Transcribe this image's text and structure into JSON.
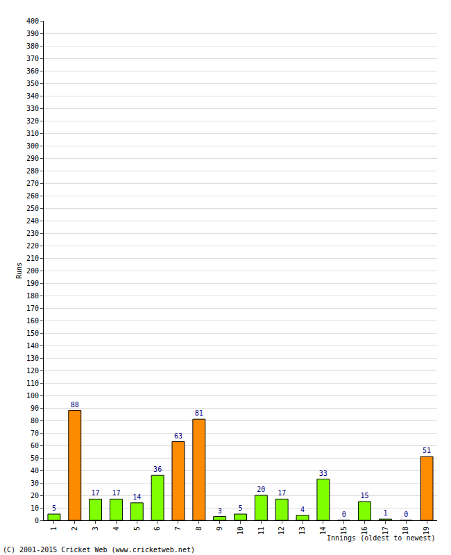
{
  "chart_data": {
    "type": "bar",
    "x_label": "Innings (oldest to newest)",
    "y_label": "Runs",
    "annotations": [
      "(C) 2001-2015 Cricket Web (www.cricketweb.net)"
    ],
    "categories": [
      "1",
      "2",
      "3",
      "4",
      "5",
      "6",
      "7",
      "8",
      "9",
      "10",
      "11",
      "12",
      "13",
      "14",
      "15",
      "16",
      "17",
      "18",
      "19"
    ],
    "values": [
      5,
      88,
      17,
      17,
      14,
      36,
      63,
      81,
      3,
      5,
      20,
      17,
      4,
      33,
      0,
      15,
      1,
      0,
      51
    ],
    "colors": [
      "#7fff00",
      "#ff8c00",
      "#7fff00",
      "#7fff00",
      "#7fff00",
      "#7fff00",
      "#ff8c00",
      "#ff8c00",
      "#7fff00",
      "#7fff00",
      "#7fff00",
      "#7fff00",
      "#7fff00",
      "#7fff00",
      "#7fff00",
      "#7fff00",
      "#7fff00",
      "#7fff00",
      "#ff8c00"
    ],
    "ylim": [
      0,
      400
    ],
    "yticks": [
      0,
      10,
      20,
      30,
      40,
      50,
      60,
      70,
      80,
      90,
      100,
      110,
      120,
      130,
      140,
      150,
      160,
      170,
      180,
      190,
      200,
      210,
      220,
      230,
      240,
      250,
      260,
      270,
      280,
      290,
      300,
      310,
      320,
      330,
      340,
      350,
      360,
      370,
      380,
      390,
      400
    ],
    "grid": true,
    "data_labels": true
  }
}
